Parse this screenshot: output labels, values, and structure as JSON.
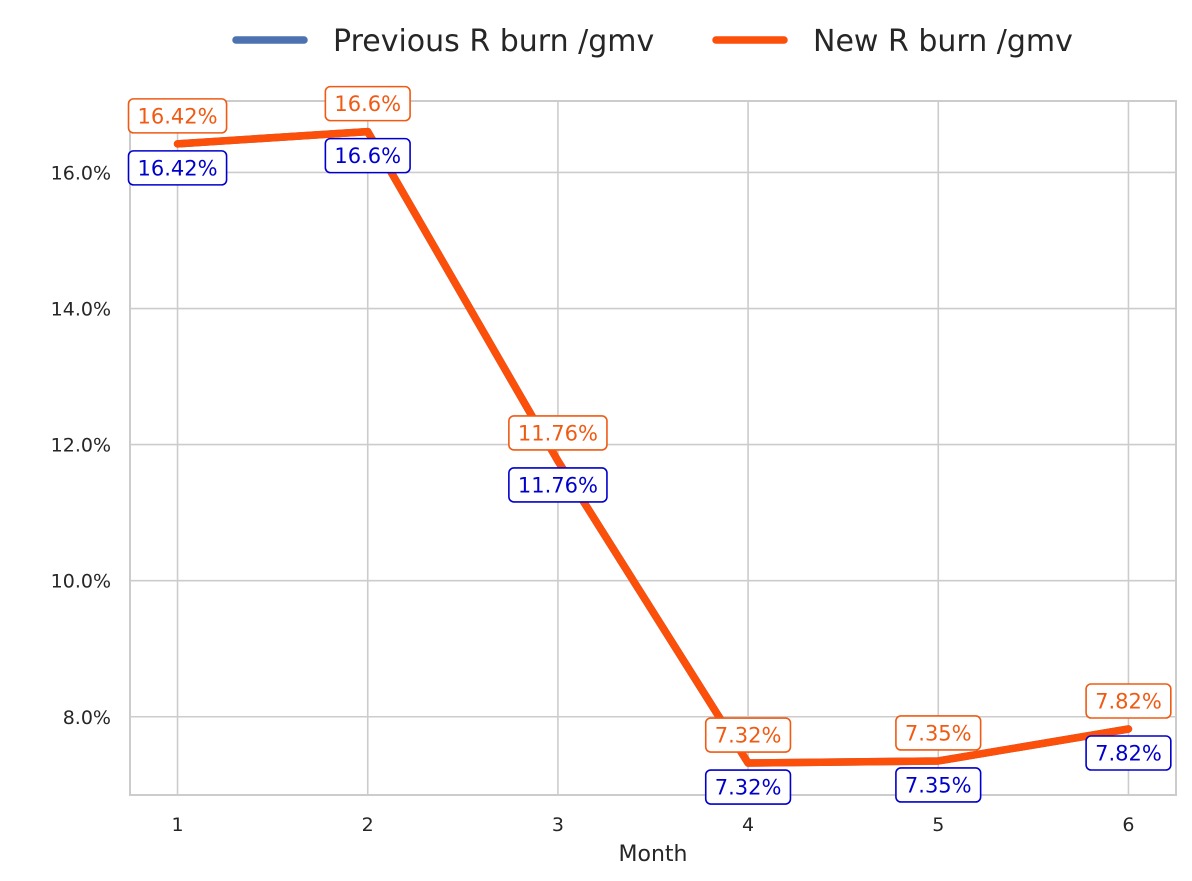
{
  "chart_data": {
    "type": "line",
    "title": "",
    "xlabel": "Month",
    "ylabel": "",
    "x": [
      1,
      2,
      3,
      4,
      5,
      6
    ],
    "xlim": [
      0.75,
      6.25
    ],
    "ylim": [
      6.85,
      17.05
    ],
    "yticks": [
      8.0,
      10.0,
      12.0,
      14.0,
      16.0
    ],
    "ytick_labels": [
      "8.0%",
      "10.0%",
      "12.0%",
      "14.0%",
      "16.0%"
    ],
    "xtick_labels": [
      "1",
      "2",
      "3",
      "4",
      "5",
      "6"
    ],
    "grid": true,
    "legend_position": "top-center",
    "series": [
      {
        "name": "Previous R burn /gmv",
        "color": "#4c72b0",
        "label_color": "#0000cc",
        "values": [
          16.42,
          16.6,
          11.76,
          7.32,
          7.35,
          7.82
        ],
        "labels": [
          "16.42%",
          "16.6%",
          "11.76%",
          "7.32%",
          "7.35%",
          "7.82%"
        ]
      },
      {
        "name": "New R burn /gmv",
        "color": "#fc4f0a",
        "label_color": "#f05a13",
        "values": [
          16.42,
          16.6,
          11.76,
          7.32,
          7.35,
          7.82
        ],
        "labels": [
          "16.42%",
          "16.6%",
          "11.76%",
          "7.32%",
          "7.35%",
          "7.82%"
        ]
      }
    ]
  }
}
